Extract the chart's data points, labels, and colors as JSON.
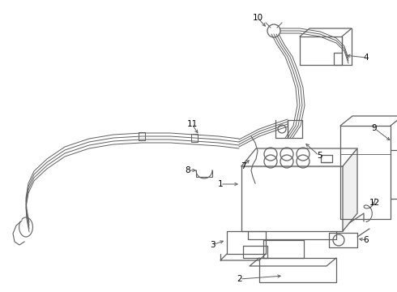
{
  "bg_color": "#ffffff",
  "line_color": "#606060",
  "label_color": "#000000",
  "fig_width": 4.9,
  "fig_height": 3.6,
  "dpi": 100
}
